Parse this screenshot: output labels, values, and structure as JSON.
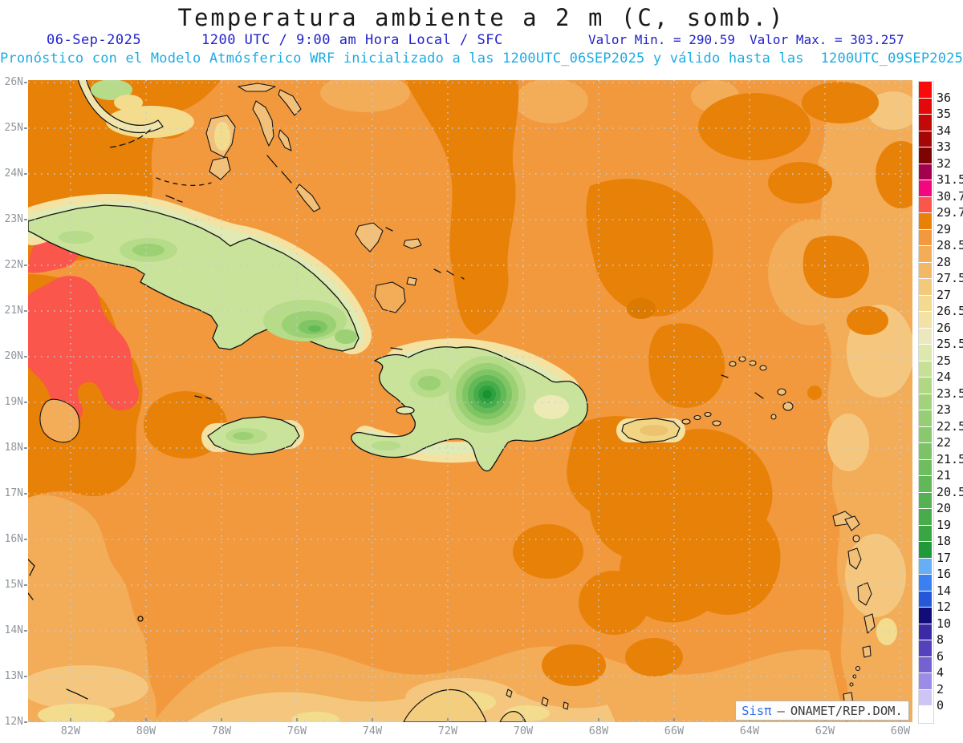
{
  "header": {
    "title": "Temperatura ambiente a 2 m (C, somb.)",
    "date": "06-Sep-2025",
    "time_line": "1200 UTC / 9:00 am Hora Local / SFC",
    "min_label": "Valor Min. = 290.59",
    "max_label": "Valor Max. = 303.257",
    "forecast_line": "Pronóstico con el Modelo Atmósferico WRF inicializado a las 1200UTC_06SEP2025 y válido hasta las  1200UTC_09SEP2025"
  },
  "axes": {
    "lat_labels": [
      "26N",
      "25N",
      "24N",
      "23N",
      "22N",
      "21N",
      "20N",
      "19N",
      "18N",
      "17N",
      "16N",
      "15N",
      "14N",
      "13N",
      "12N"
    ],
    "lon_labels": [
      "82W",
      "80W",
      "78W",
      "76W",
      "74W",
      "72W",
      "70W",
      "68W",
      "66W",
      "64W",
      "62W",
      "60W"
    ]
  },
  "colorbar": {
    "labels": [
      "36",
      "35",
      "34",
      "33",
      "32",
      "31.5",
      "30.7",
      "29.7",
      "29",
      "28.5",
      "28",
      "27.5",
      "27",
      "26.5",
      "26",
      "25.5",
      "25",
      "24",
      "23.5",
      "23",
      "22.5",
      "22",
      "21.5",
      "21",
      "20.5",
      "20",
      "19",
      "18",
      "17",
      "16",
      "14",
      "12",
      "10",
      "8",
      "6",
      "4",
      "2",
      "0"
    ],
    "colors": [
      "#FA0A0A",
      "#E30909",
      "#C40808",
      "#A50606",
      "#7D0404",
      "#A3004E",
      "#F2077E",
      "#FA564C",
      "#E88108",
      "#F2993D",
      "#F3AC58",
      "#F2B868",
      "#F3C97B",
      "#F4DA90",
      "#F2E3A5",
      "#EAE8BC",
      "#DCE8AC",
      "#C6E095",
      "#B0D883",
      "#A2D37B",
      "#95CE74",
      "#88C96D",
      "#7BC366",
      "#6EBE5F",
      "#61B857",
      "#54B250",
      "#47AC49",
      "#39A642",
      "#20993A",
      "#66AEF6",
      "#3A80F0",
      "#2458D8",
      "#120C78",
      "#3A2BA4",
      "#5442BC",
      "#7562D2",
      "#9C8CE8",
      "#CEC5F5",
      "#FFFFFF"
    ]
  },
  "watermark": {
    "brand": "Sisπ",
    "separator": "–",
    "org": "ONAMET/REP.DOM."
  },
  "palette": {
    "ocean_base": "#F2993D",
    "ocean_dark": "#E88108",
    "ocean_darker_spot": "#DB7900",
    "ocean_light": "#F3AC58",
    "ocean_pale": "#F5C77E",
    "ocean_yellow": "#F3DC8E",
    "hot_red": "#FA564C",
    "halo_yellow": "#F3E2A2",
    "halo_green": "#E0EAB4",
    "land_green_light": "#C9E39B",
    "land_tan": "#F3C079",
    "land_yellow": "#F0E5AE",
    "land_pr_yellow": "#F2D584",
    "green_1": "#B6DB89",
    "green_2": "#9BD075",
    "green_3": "#7FC465",
    "green_4": "#63B857",
    "green_5": "#47AC4B",
    "green_6": "#2FA03F",
    "green_7": "#17932F",
    "coastline": "#131313",
    "grid_color": "#C3CEDA",
    "axis_label_color": "#8F969C",
    "title_color": "#1A1A1A",
    "subtitle_blue": "#2222CC",
    "subtitle_cyan": "#1CACE4",
    "watermark_brand_blue": "#2E6FE8",
    "watermark_text_color": "#3C3C3C"
  }
}
